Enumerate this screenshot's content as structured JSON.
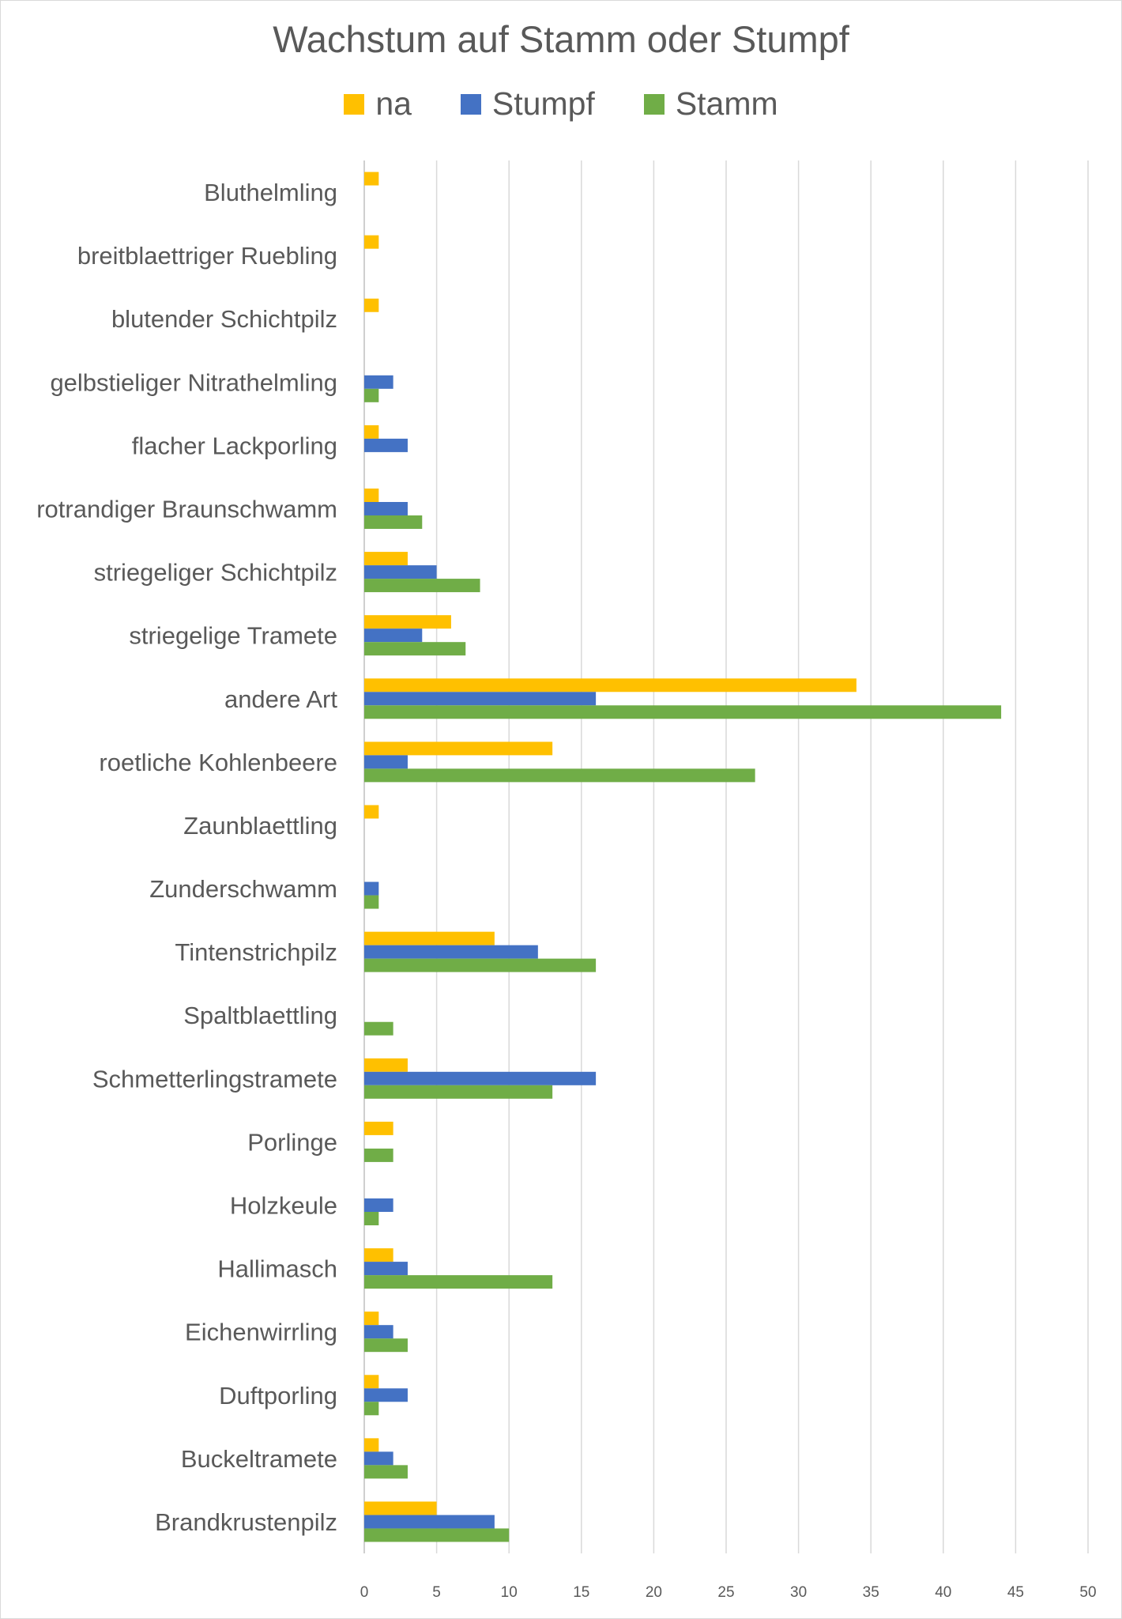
{
  "chart_data": {
    "type": "bar",
    "orientation": "horizontal",
    "title": "Wachstum auf Stamm oder Stumpf",
    "legend_position": "top",
    "categories": [
      "Bluthelmling",
      "breitblaettriger Ruebling",
      "blutender Schichtpilz",
      "gelbstieliger Nitrathelmling",
      "flacher Lackporling",
      "rotrandiger Braunschwamm",
      "striegeliger Schichtpilz",
      "striegelige Tramete",
      "andere Art",
      "roetliche Kohlenbeere",
      "Zaunblaettling",
      "Zunderschwamm",
      "Tintenstrichpilz",
      "Spaltblaettling",
      "Schmetterlingstramete",
      "Porlinge",
      "Holzkeule",
      "Hallimasch",
      "Eichenwirrling",
      "Duftporling",
      "Buckeltramete",
      "Brandkrustenpilz"
    ],
    "series": [
      {
        "name": "na",
        "color": "#FFC000",
        "values": [
          1,
          1,
          1,
          0,
          1,
          1,
          3,
          6,
          34,
          13,
          1,
          0,
          9,
          0,
          3,
          2,
          0,
          2,
          1,
          1,
          1,
          5
        ]
      },
      {
        "name": "Stumpf",
        "color": "#4472C4",
        "values": [
          0,
          0,
          0,
          2,
          3,
          3,
          5,
          4,
          16,
          3,
          0,
          1,
          12,
          0,
          16,
          0,
          2,
          3,
          2,
          3,
          2,
          9
        ]
      },
      {
        "name": "Stamm",
        "color": "#70AD47",
        "values": [
          0,
          0,
          0,
          1,
          0,
          4,
          8,
          7,
          44,
          27,
          0,
          1,
          16,
          2,
          13,
          2,
          1,
          13,
          3,
          1,
          3,
          10
        ]
      }
    ],
    "xlim": [
      0,
      50
    ],
    "x_ticks": [
      0,
      5,
      10,
      15,
      20,
      25,
      30,
      35,
      40,
      45,
      50
    ],
    "grid": "vertical"
  }
}
